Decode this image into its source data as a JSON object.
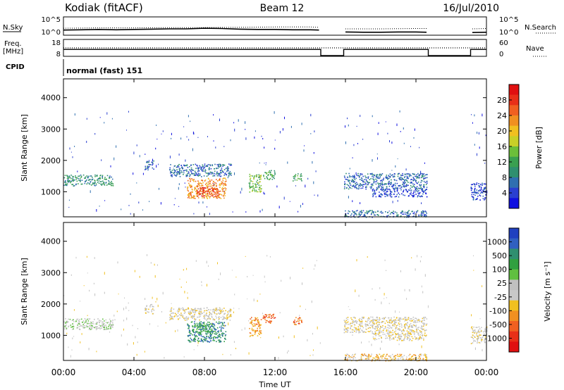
{
  "header": {
    "station": "Kodiak (fitACF)",
    "beam": "Beam 12",
    "date": "16/Jul/2010"
  },
  "colors": {
    "power_scale": [
      "#1010e0",
      "#2a3fd0",
      "#2f6fb0",
      "#2f8f6f",
      "#3aa050",
      "#6cbf3a",
      "#c8d028",
      "#f0c020",
      "#f09020",
      "#f06020",
      "#e83018",
      "#e01010"
    ],
    "velocity_scale": [
      "#2040c0",
      "#3060c0",
      "#2f8f6f",
      "#30a040",
      "#60c040",
      "#c0c0c0",
      "#c8c8c8",
      "#f0c020",
      "#f09020",
      "#f06020",
      "#e83018",
      "#e01010"
    ]
  },
  "chart_data": [
    {
      "type": "line",
      "panel": "noise",
      "left_axis": {
        "label": "N.Sky",
        "ticks": [
          "10^5",
          "10^0"
        ]
      },
      "right_axis": {
        "label": "N.Search",
        "ticks": [
          "10^5",
          "10^0"
        ]
      },
      "gaps_hours": [
        [
          14.6,
          15.9
        ],
        [
          20.7,
          23.1
        ]
      ],
      "series": [
        {
          "style": "solid",
          "x": [
            0,
            1,
            2,
            3,
            4,
            5,
            6,
            7,
            8,
            9,
            10,
            11,
            12,
            13,
            14,
            14.5,
            16,
            17,
            18,
            19,
            20,
            20.6,
            23.2,
            24
          ],
          "y": [
            1.2,
            1.3,
            1.4,
            1.3,
            1.4,
            1.5,
            1.6,
            1.6,
            1.8,
            1.7,
            1.5,
            1.4,
            1.4,
            1.3,
            1.3,
            1.2,
            0.6,
            0.5,
            0.5,
            0.6,
            0.6,
            0.5,
            0.4,
            0.5
          ]
        },
        {
          "style": "dotted",
          "x": [
            0,
            2,
            4,
            6,
            8,
            10,
            12,
            14,
            14.5,
            16,
            18,
            20,
            20.6,
            23.2,
            24
          ],
          "y": [
            1.8,
            1.9,
            1.9,
            2.0,
            2.0,
            2.1,
            2.2,
            2.2,
            2.1,
            1.6,
            1.6,
            1.7,
            1.7,
            1.6,
            1.7
          ]
        }
      ]
    },
    {
      "type": "line",
      "panel": "frequency",
      "left_axis": {
        "label": "Freq.",
        "unit": "[MHz]",
        "ticks": [
          "18",
          "8"
        ],
        "ylim": [
          8,
          18
        ]
      },
      "right_axis": {
        "label": "Nave",
        "ticks": [
          "60",
          "0"
        ],
        "ylim": [
          0,
          60
        ]
      },
      "series": [
        {
          "style": "solid",
          "x": [
            0,
            14.6,
            14.6,
            15.9,
            15.9,
            20.7,
            20.7,
            23.1,
            23.1,
            24
          ],
          "y": [
            12.0,
            12.0,
            8.0,
            8.0,
            12.0,
            12.0,
            8.0,
            8.0,
            12.0,
            12.0
          ]
        },
        {
          "style": "dotted",
          "x": [
            0,
            14.6,
            15.9,
            20.7,
            23.1,
            24
          ],
          "y": [
            13.0,
            13.0,
            13.0,
            13.0,
            13.0,
            13.0
          ]
        }
      ]
    },
    {
      "type": "table",
      "panel": "cpid",
      "label": "CPID",
      "value": "normal (fast) 151"
    },
    {
      "type": "heatmap",
      "panel": "power",
      "ylabel": "Slant Range [km]",
      "yticks": [
        "1000",
        "2000",
        "3000",
        "4000"
      ],
      "ylim": [
        200,
        4600
      ],
      "xlim": [
        0,
        24
      ],
      "colorbar": {
        "label": "Power [dB]",
        "ticks": [
          "28",
          "24",
          "20",
          "16",
          "12",
          "8",
          "4"
        ]
      },
      "blobs": [
        {
          "x0": 0.0,
          "x1": 2.8,
          "r0": 1200,
          "r1": 1550,
          "level": 3
        },
        {
          "x0": 4.6,
          "x1": 5.1,
          "r0": 1700,
          "r1": 2000,
          "level": 2
        },
        {
          "x0": 6.0,
          "x1": 9.5,
          "r0": 1500,
          "r1": 1900,
          "level": 2
        },
        {
          "x0": 7.0,
          "x1": 9.2,
          "r0": 800,
          "r1": 1450,
          "level": 8
        },
        {
          "x0": 7.5,
          "x1": 8.8,
          "r0": 850,
          "r1": 1150,
          "level": 10
        },
        {
          "x0": 10.5,
          "x1": 11.2,
          "r0": 1000,
          "r1": 1600,
          "level": 5
        },
        {
          "x0": 11.3,
          "x1": 12.0,
          "r0": 1400,
          "r1": 1700,
          "level": 4
        },
        {
          "x0": 13.0,
          "x1": 13.5,
          "r0": 1350,
          "r1": 1600,
          "level": 4
        },
        {
          "x0": 15.9,
          "x1": 20.6,
          "r0": 1100,
          "r1": 1600,
          "level": 2
        },
        {
          "x0": 17.5,
          "x1": 20.6,
          "r0": 850,
          "r1": 1100,
          "level": 1
        },
        {
          "x0": 23.1,
          "x1": 24.0,
          "r0": 750,
          "r1": 1300,
          "level": 1
        },
        {
          "x0": 15.9,
          "x1": 20.6,
          "r0": 200,
          "r1": 420,
          "level": 2
        }
      ]
    },
    {
      "type": "heatmap",
      "panel": "velocity",
      "ylabel": "Slant Range [km]",
      "yticks": [
        "1000",
        "2000",
        "3000",
        "4000"
      ],
      "ylim": [
        200,
        4600
      ],
      "xlim": [
        0,
        24
      ],
      "xlabel": "Time UT",
      "xticks": [
        "00:00",
        "04:00",
        "08:00",
        "12:00",
        "16:00",
        "20:00",
        "00:00"
      ],
      "colorbar": {
        "label": "Velocity [m s⁻¹]",
        "ticks": [
          "1000",
          "500",
          "100",
          "25",
          "-25",
          "-100",
          "-500",
          "-1000"
        ]
      },
      "blobs": [
        {
          "x0": 0.0,
          "x1": 2.8,
          "r0": 1200,
          "r1": 1550,
          "level": 5
        },
        {
          "x0": 4.6,
          "x1": 5.1,
          "r0": 1700,
          "r1": 2000,
          "level": 6
        },
        {
          "x0": 6.0,
          "x1": 9.5,
          "r0": 1500,
          "r1": 1900,
          "level": 6
        },
        {
          "x0": 7.0,
          "x1": 9.2,
          "r0": 800,
          "r1": 1450,
          "level": 2
        },
        {
          "x0": 7.3,
          "x1": 8.6,
          "r0": 1100,
          "r1": 1400,
          "level": 3
        },
        {
          "x0": 10.5,
          "x1": 11.2,
          "r0": 1000,
          "r1": 1600,
          "level": 8
        },
        {
          "x0": 11.3,
          "x1": 12.0,
          "r0": 1400,
          "r1": 1700,
          "level": 9
        },
        {
          "x0": 13.0,
          "x1": 13.5,
          "r0": 1350,
          "r1": 1600,
          "level": 9
        },
        {
          "x0": 15.9,
          "x1": 20.6,
          "r0": 1100,
          "r1": 1600,
          "level": 6
        },
        {
          "x0": 17.5,
          "x1": 20.6,
          "r0": 850,
          "r1": 1100,
          "level": 6
        },
        {
          "x0": 23.1,
          "x1": 24.0,
          "r0": 750,
          "r1": 1300,
          "level": 6
        },
        {
          "x0": 15.9,
          "x1": 20.6,
          "r0": 200,
          "r1": 420,
          "level": 7
        }
      ]
    }
  ]
}
